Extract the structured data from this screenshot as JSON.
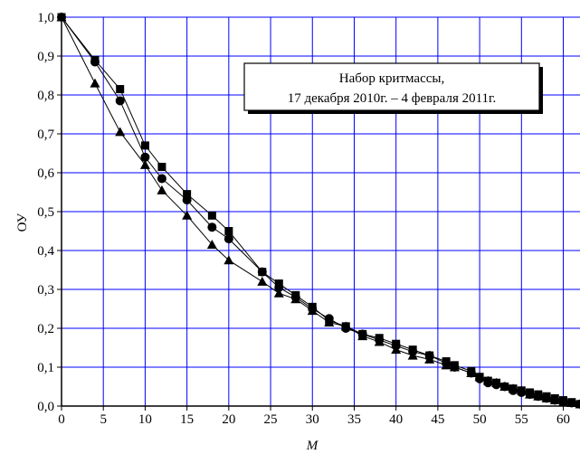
{
  "chart_data": {
    "type": "line",
    "xlabel": "M",
    "ylabel": "ОУ",
    "xlim": [
      0,
      62
    ],
    "ylim": [
      0,
      1.0
    ],
    "xticks": [
      "0",
      "5",
      "10",
      "15",
      "20",
      "25",
      "30",
      "35",
      "40",
      "45",
      "50",
      "55",
      "60"
    ],
    "xtick_values": [
      0,
      5,
      10,
      15,
      20,
      25,
      30,
      35,
      40,
      45,
      50,
      55,
      60
    ],
    "yticks": [
      "0,0",
      "0,1",
      "0,2",
      "0,3",
      "0,4",
      "0,5",
      "0,6",
      "0,7",
      "0,8",
      "0,9",
      "1,0"
    ],
    "ytick_values": [
      0,
      0.1,
      0.2,
      0.3,
      0.4,
      0.5,
      0.6,
      0.7,
      0.8,
      0.9,
      1.0
    ],
    "grid": true,
    "grid_color": "#0000ff",
    "legend_box": {
      "lines": [
        "Набор критмассы,",
        "17 декабря 2010г. – 4 февраля 2011г."
      ],
      "placement": "top-right"
    },
    "series": [
      {
        "marker": "square",
        "x": [
          0,
          4,
          7,
          10,
          12,
          15,
          18,
          20,
          24,
          26,
          28,
          30,
          32,
          34,
          36,
          38,
          40,
          42,
          44,
          46,
          47,
          49,
          50,
          51,
          52,
          53,
          54,
          55,
          56,
          57,
          58,
          59,
          60,
          61,
          62
        ],
        "y": [
          1.0,
          0.89,
          0.815,
          0.67,
          0.615,
          0.545,
          0.49,
          0.45,
          0.345,
          0.315,
          0.285,
          0.255,
          0.22,
          0.205,
          0.185,
          0.175,
          0.16,
          0.145,
          0.13,
          0.115,
          0.105,
          0.09,
          0.075,
          0.065,
          0.06,
          0.05,
          0.045,
          0.04,
          0.035,
          0.03,
          0.025,
          0.02,
          0.015,
          0.01,
          0.005
        ]
      },
      {
        "marker": "circle",
        "x": [
          0,
          4,
          7,
          10,
          12,
          15,
          18,
          20,
          24,
          26,
          28,
          30,
          32,
          34,
          36,
          38,
          40,
          42,
          44,
          46,
          47,
          49,
          50,
          51,
          52,
          53,
          54,
          55,
          56,
          57,
          58,
          59,
          60,
          61,
          62
        ],
        "y": [
          1.0,
          0.885,
          0.785,
          0.64,
          0.585,
          0.53,
          0.46,
          0.43,
          0.345,
          0.305,
          0.28,
          0.25,
          0.225,
          0.2,
          0.185,
          0.17,
          0.155,
          0.14,
          0.13,
          0.11,
          0.1,
          0.085,
          0.07,
          0.06,
          0.055,
          0.05,
          0.04,
          0.035,
          0.03,
          0.025,
          0.02,
          0.015,
          0.012,
          0.008,
          0.005
        ]
      },
      {
        "marker": "triangle",
        "x": [
          0,
          4,
          7,
          10,
          12,
          15,
          18,
          20,
          24,
          26,
          28,
          30,
          32,
          34,
          36,
          38,
          40,
          42,
          44,
          46,
          47,
          49,
          50,
          51,
          52,
          53,
          54,
          55,
          56,
          57,
          58,
          59,
          60,
          61,
          62
        ],
        "y": [
          1.0,
          0.83,
          0.705,
          0.62,
          0.555,
          0.49,
          0.415,
          0.375,
          0.32,
          0.29,
          0.275,
          0.245,
          0.215,
          0.205,
          0.18,
          0.165,
          0.145,
          0.13,
          0.12,
          0.105,
          0.1,
          0.085,
          0.075,
          0.065,
          0.06,
          0.05,
          0.045,
          0.04,
          0.03,
          0.025,
          0.02,
          0.015,
          0.01,
          0.008,
          0.005
        ]
      }
    ]
  }
}
